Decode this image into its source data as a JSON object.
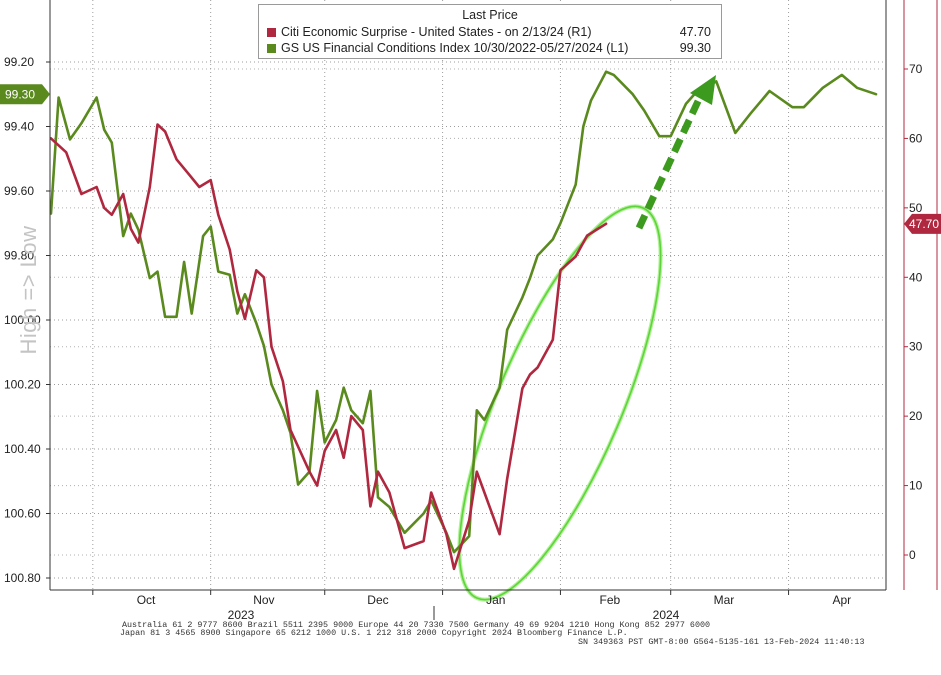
{
  "chart_data": {
    "type": "line",
    "legend": {
      "header": "Last Price",
      "placement": "top-center",
      "entries": [
        {
          "name": "Citi Economic Surprise - United States -   on 2/13/24  (R1)",
          "value": "47.70",
          "color": "#b0283f"
        },
        {
          "name": "GS US Financial Conditions Index 10/30/2022-05/27/2024  (L1)",
          "value": "99.30",
          "color": "#5a8a1e"
        }
      ]
    },
    "left_axis": {
      "ticks": [
        "99.20",
        "99.40",
        "99.60",
        "99.80",
        "100.00",
        "100.20",
        "100.40",
        "100.60",
        "100.80"
      ],
      "ylim": [
        99.13,
        100.82
      ],
      "inverted": true,
      "last_value_label": "99.30"
    },
    "right_axis": {
      "ticks": [
        "70",
        "60",
        "50",
        "40",
        "30",
        "20",
        "10",
        "0"
      ],
      "ylim": [
        -5,
        79
      ],
      "last_value_label": "47.70"
    },
    "x_axis": {
      "month_labels": [
        "Oct",
        "Nov",
        "Dec",
        "Jan",
        "Feb",
        "Mar",
        "Apr"
      ],
      "year_labels": [
        "2023",
        "2024"
      ]
    },
    "side_label": "High => Low",
    "grid": true,
    "series": [
      {
        "name": "GS US Financial Conditions Index 10/30/2022-05/27/2024  (L1)",
        "axis": "left",
        "color": "#5a8a1e",
        "x": [
          "2023-09-20",
          "2023-09-22",
          "2023-09-25",
          "2023-09-28",
          "2023-10-02",
          "2023-10-04",
          "2023-10-06",
          "2023-10-09",
          "2023-10-11",
          "2023-10-13",
          "2023-10-16",
          "2023-10-18",
          "2023-10-20",
          "2023-10-23",
          "2023-10-25",
          "2023-10-27",
          "2023-10-30",
          "2023-11-01",
          "2023-11-03",
          "2023-11-06",
          "2023-11-08",
          "2023-11-10",
          "2023-11-13",
          "2023-11-15",
          "2023-11-17",
          "2023-11-20",
          "2023-11-22",
          "2023-11-24",
          "2023-11-27",
          "2023-11-29",
          "2023-12-01",
          "2023-12-04",
          "2023-12-06",
          "2023-12-08",
          "2023-12-11",
          "2023-12-13",
          "2023-12-15",
          "2023-12-18",
          "2023-12-20",
          "2023-12-22",
          "2023-12-27",
          "2023-12-29",
          "2024-01-02",
          "2024-01-04",
          "2024-01-08",
          "2024-01-10",
          "2024-01-12",
          "2024-01-16",
          "2024-01-18",
          "2024-01-22",
          "2024-01-24",
          "2024-01-26",
          "2024-01-30",
          "2024-02-01",
          "2024-02-05",
          "2024-02-07",
          "2024-02-09",
          "2024-02-13",
          "2024-02-15",
          "2024-02-20",
          "2024-02-23",
          "2024-02-27",
          "2024-03-01",
          "2024-03-05",
          "2024-03-08",
          "2024-03-13",
          "2024-03-18",
          "2024-03-22",
          "2024-03-27",
          "2024-04-02",
          "2024-04-05",
          "2024-04-10",
          "2024-04-15",
          "2024-04-19",
          "2024-04-24"
        ],
        "values": [
          99.67,
          99.31,
          99.44,
          99.39,
          99.31,
          99.41,
          99.45,
          99.74,
          99.67,
          99.72,
          99.87,
          99.85,
          99.99,
          99.99,
          99.82,
          99.98,
          99.74,
          99.71,
          99.85,
          99.86,
          99.98,
          99.92,
          100.01,
          100.08,
          100.2,
          100.28,
          100.35,
          100.51,
          100.47,
          100.22,
          100.38,
          100.31,
          100.21,
          100.28,
          100.32,
          100.22,
          100.55,
          100.58,
          100.62,
          100.66,
          100.6,
          100.56,
          100.66,
          100.72,
          100.67,
          100.28,
          100.31,
          100.21,
          100.03,
          99.93,
          99.87,
          99.8,
          99.75,
          99.7,
          99.58,
          99.4,
          99.32,
          99.23,
          99.24,
          99.3,
          99.35,
          99.43,
          99.43,
          99.33,
          99.29,
          99.26,
          99.42,
          99.36,
          99.29,
          99.34,
          99.34,
          99.28,
          99.24,
          99.28,
          99.3
        ]
      },
      {
        "name": "Citi Economic Surprise - United States -   on 2/13/24  (R1)",
        "axis": "right",
        "color": "#b0283f",
        "x": [
          "2023-09-20",
          "2023-09-24",
          "2023-09-28",
          "2023-10-02",
          "2023-10-04",
          "2023-10-06",
          "2023-10-09",
          "2023-10-11",
          "2023-10-13",
          "2023-10-16",
          "2023-10-18",
          "2023-10-20",
          "2023-10-23",
          "2023-10-26",
          "2023-10-29",
          "2023-11-01",
          "2023-11-03",
          "2023-11-06",
          "2023-11-08",
          "2023-11-10",
          "2023-11-13",
          "2023-11-15",
          "2023-11-17",
          "2023-11-20",
          "2023-11-22",
          "2023-11-27",
          "2023-11-29",
          "2023-12-01",
          "2023-12-04",
          "2023-12-06",
          "2023-12-08",
          "2023-12-11",
          "2023-12-13",
          "2023-12-15",
          "2023-12-18",
          "2023-12-20",
          "2023-12-22",
          "2023-12-27",
          "2023-12-29",
          "2024-01-02",
          "2024-01-04",
          "2024-01-08",
          "2024-01-10",
          "2024-01-12",
          "2024-01-16",
          "2024-01-18",
          "2024-01-22",
          "2024-01-24",
          "2024-01-26",
          "2024-01-30",
          "2024-02-01",
          "2024-02-05",
          "2024-02-08",
          "2024-02-13"
        ],
        "values": [
          60,
          58,
          52,
          53,
          50,
          49,
          52,
          47,
          45,
          53,
          62,
          61,
          57,
          55,
          53,
          54,
          49,
          44,
          38,
          34,
          41,
          40,
          30,
          25,
          18,
          12,
          10,
          15,
          18,
          14,
          20,
          18,
          7,
          12,
          9,
          5,
          1,
          2,
          9,
          3,
          -2,
          5,
          12,
          9,
          3,
          11,
          24,
          26,
          27,
          31,
          41,
          43,
          46,
          47.7
        ]
      }
    ]
  },
  "footer": {
    "line1": "Australia 61 2 9777 8600 Brazil 5511 2395 9000 Europe 44 20 7330 7500 Germany 49 69 9204 1210 Hong Kong 852 2977 6000",
    "line2": "Japan 81 3 4565 8900          Singapore 65 6212 1000          U.S. 1 212 318 2000                    Copyright 2024 Bloomberg Finance L.P.",
    "line3": "SN 349363 PST  GMT-8:00 G564-5135-161 13-Feb-2024 11:40:13"
  }
}
